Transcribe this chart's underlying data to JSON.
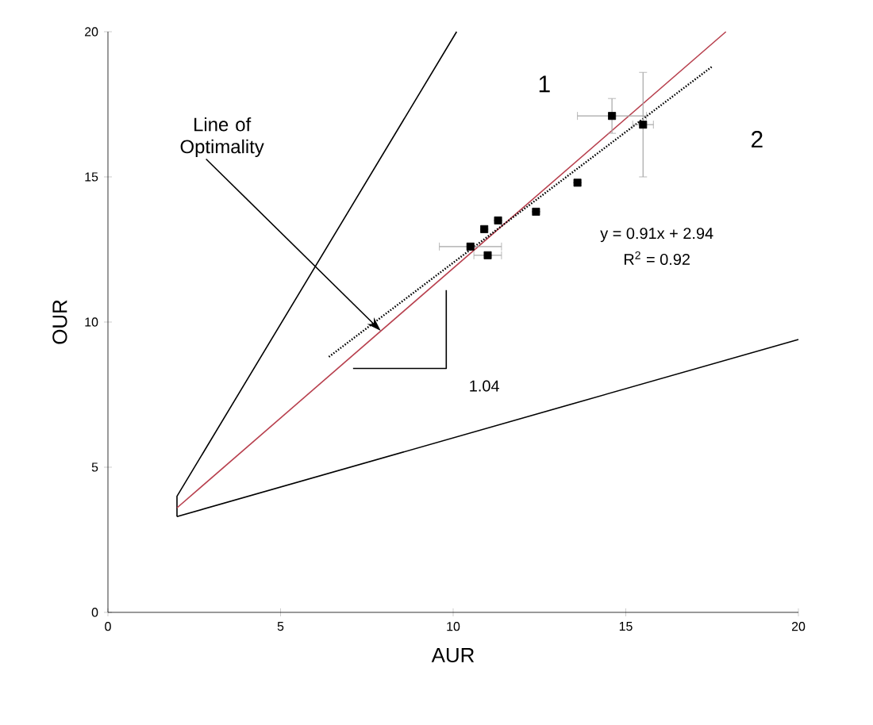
{
  "chart_data": {
    "type": "scatter",
    "xlabel": "AUR",
    "ylabel": "OUR",
    "xlim": [
      0,
      20
    ],
    "ylim": [
      0,
      20
    ],
    "xticks": [
      0,
      5,
      10,
      15,
      20
    ],
    "yticks": [
      0,
      5,
      10,
      15,
      20
    ],
    "series": [
      {
        "type": "line",
        "color": "#000000",
        "line_style": "solid",
        "x": [
          2,
          2,
          10.1
        ],
        "values": [
          3.3,
          4.0,
          20
        ]
      },
      {
        "type": "line",
        "color": "#000000",
        "line_style": "solid",
        "x": [
          2,
          20
        ],
        "values": [
          3.3,
          9.4
        ]
      },
      {
        "type": "line",
        "color": "#b8404e",
        "line_style": "solid",
        "x": [
          2,
          17.9
        ],
        "values": [
          3.6,
          20
        ]
      },
      {
        "type": "line",
        "color": "#000000",
        "line_style": "dotted",
        "x": [
          6.4,
          17.5
        ],
        "values": [
          8.8,
          18.8
        ]
      },
      {
        "type": "line",
        "color": "#000000",
        "line_style": "solid",
        "x": [
          7.1,
          9.8,
          9.8
        ],
        "values": [
          8.4,
          8.4,
          11.1
        ]
      },
      {
        "color": "#000000",
        "marker": "square",
        "x": [
          10.5,
          10.9,
          11.0,
          11.3,
          12.4,
          13.6,
          14.6,
          15.5
        ],
        "values": [
          12.6,
          13.2,
          12.3,
          13.5,
          13.8,
          14.8,
          17.1,
          16.8
        ],
        "xerrors": [
          0.9,
          null,
          0.4,
          null,
          null,
          null,
          1.0,
          0.3
        ],
        "errors": [
          null,
          null,
          null,
          null,
          null,
          null,
          0.6,
          1.8
        ]
      }
    ],
    "annotations": [
      {
        "text": "Line of Optimality",
        "x": 7.9,
        "y": 9.7
      },
      "1.04",
      "y = 0.91x + 2.94",
      "R$^{2}$ = 0.92",
      "1",
      "2"
    ]
  }
}
